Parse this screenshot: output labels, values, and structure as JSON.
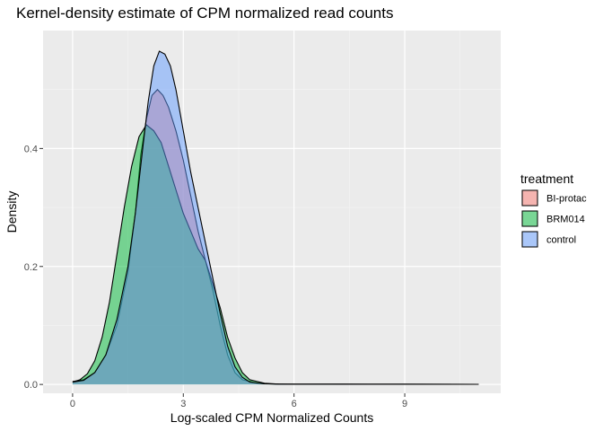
{
  "chart_data": {
    "type": "area",
    "title": "Kernel-density estimate of CPM normalized read counts",
    "xlabel": "Log-scaled CPM Normalized Counts",
    "ylabel": "Density",
    "xlim": [
      -0.8,
      11.6
    ],
    "ylim": [
      -0.015,
      0.6
    ],
    "xticks": [
      0,
      3,
      6,
      9
    ],
    "yticks": [
      0.0,
      0.2,
      0.4
    ],
    "xtick_labels": [
      "0",
      "3",
      "6",
      "9"
    ],
    "ytick_labels": [
      "0.0",
      "0.2",
      "0.4"
    ],
    "grid": true,
    "legend": {
      "title": "treatment",
      "position": "right"
    },
    "series": [
      {
        "name": "BI-protac",
        "color": "#F8766D",
        "points": [
          [
            0,
            0.005
          ],
          [
            0.3,
            0.008
          ],
          [
            0.6,
            0.02
          ],
          [
            0.9,
            0.05
          ],
          [
            1.2,
            0.1
          ],
          [
            1.5,
            0.19
          ],
          [
            1.7,
            0.29
          ],
          [
            1.85,
            0.39
          ],
          [
            2.0,
            0.45
          ],
          [
            2.15,
            0.49
          ],
          [
            2.3,
            0.5
          ],
          [
            2.45,
            0.49
          ],
          [
            2.6,
            0.47
          ],
          [
            2.8,
            0.43
          ],
          [
            3.0,
            0.38
          ],
          [
            3.2,
            0.32
          ],
          [
            3.4,
            0.26
          ],
          [
            3.6,
            0.21
          ],
          [
            3.8,
            0.16
          ],
          [
            4.0,
            0.1
          ],
          [
            4.2,
            0.05
          ],
          [
            4.4,
            0.02
          ],
          [
            4.6,
            0.008
          ],
          [
            5.0,
            0.002
          ],
          [
            5.5,
            0.0005
          ],
          [
            7,
            0.0004
          ],
          [
            9,
            0.0003
          ],
          [
            11,
            0.0002
          ]
        ]
      },
      {
        "name": "BRM014",
        "color": "#00BA38",
        "points": [
          [
            0,
            0.004
          ],
          [
            0.2,
            0.008
          ],
          [
            0.4,
            0.018
          ],
          [
            0.6,
            0.04
          ],
          [
            0.8,
            0.08
          ],
          [
            1.0,
            0.14
          ],
          [
            1.2,
            0.22
          ],
          [
            1.4,
            0.3
          ],
          [
            1.6,
            0.37
          ],
          [
            1.8,
            0.42
          ],
          [
            2.0,
            0.44
          ],
          [
            2.2,
            0.43
          ],
          [
            2.4,
            0.41
          ],
          [
            2.6,
            0.37
          ],
          [
            2.8,
            0.33
          ],
          [
            3.0,
            0.29
          ],
          [
            3.2,
            0.26
          ],
          [
            3.4,
            0.23
          ],
          [
            3.6,
            0.21
          ],
          [
            3.8,
            0.17
          ],
          [
            4.0,
            0.13
          ],
          [
            4.2,
            0.08
          ],
          [
            4.4,
            0.045
          ],
          [
            4.6,
            0.02
          ],
          [
            4.8,
            0.008
          ],
          [
            5.2,
            0.002
          ],
          [
            5.6,
            0.0005
          ],
          [
            7,
            0.0004
          ],
          [
            9,
            0.0003
          ],
          [
            11,
            0.0002
          ]
        ]
      },
      {
        "name": "control",
        "color": "#619CFF",
        "points": [
          [
            0,
            0.004
          ],
          [
            0.3,
            0.007
          ],
          [
            0.6,
            0.02
          ],
          [
            0.9,
            0.05
          ],
          [
            1.2,
            0.11
          ],
          [
            1.5,
            0.2
          ],
          [
            1.7,
            0.29
          ],
          [
            1.9,
            0.4
          ],
          [
            2.05,
            0.48
          ],
          [
            2.2,
            0.54
          ],
          [
            2.35,
            0.565
          ],
          [
            2.5,
            0.56
          ],
          [
            2.65,
            0.54
          ],
          [
            2.8,
            0.5
          ],
          [
            3.0,
            0.43
          ],
          [
            3.2,
            0.36
          ],
          [
            3.4,
            0.3
          ],
          [
            3.6,
            0.24
          ],
          [
            3.8,
            0.18
          ],
          [
            4.0,
            0.12
          ],
          [
            4.2,
            0.065
          ],
          [
            4.4,
            0.03
          ],
          [
            4.6,
            0.012
          ],
          [
            4.8,
            0.004
          ],
          [
            5.2,
            0.001
          ],
          [
            6,
            0.0005
          ],
          [
            8,
            0.0004
          ],
          [
            11,
            0.0002
          ]
        ]
      }
    ]
  }
}
